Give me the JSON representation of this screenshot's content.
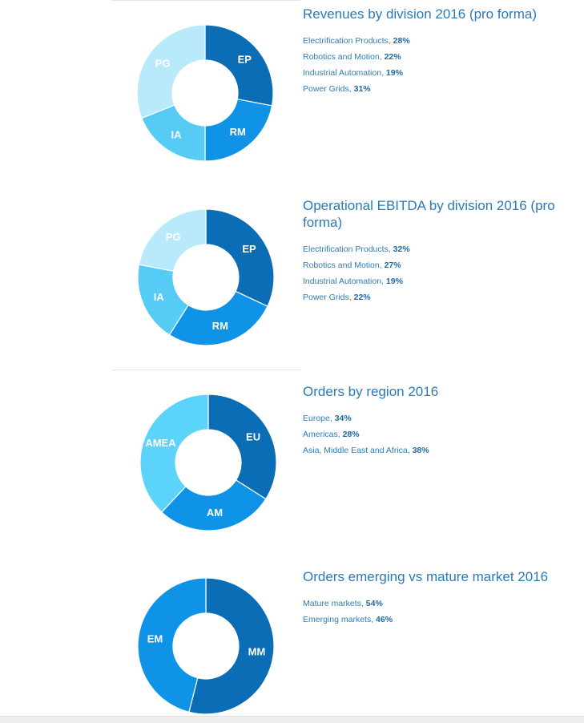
{
  "chart_data": [
    {
      "type": "pie",
      "title": "Revenues by division 2016 (pro forma)",
      "slices": [
        {
          "label": "EP",
          "legend": "Electrification Products",
          "value": 28,
          "value_text": "28%",
          "color": "#0b6db5"
        },
        {
          "label": "RM",
          "legend": "Robotics and Motion",
          "value": 22,
          "value_text": "22%",
          "color": "#0f93e6"
        },
        {
          "label": "IA",
          "legend": "Industrial Automation",
          "value": 19,
          "value_text": "19%",
          "color": "#56cbf5"
        },
        {
          "label": "PG",
          "legend": "Power Grids",
          "value": 31,
          "value_text": "31%",
          "color": "#b8eafc"
        }
      ]
    },
    {
      "type": "pie",
      "title": "Operational EBITDA by division 2016 (pro forma)",
      "slices": [
        {
          "label": "EP",
          "legend": "Electrification Products",
          "value": 32,
          "value_text": "32%",
          "color": "#0b6db5"
        },
        {
          "label": "RM",
          "legend": "Robotics and Motion",
          "value": 27,
          "value_text": "27%",
          "color": "#0f93e6"
        },
        {
          "label": "IA",
          "legend": "Industrial Automation",
          "value": 19,
          "value_text": "19%",
          "color": "#56cbf5"
        },
        {
          "label": "PG",
          "legend": "Power Grids",
          "value": 22,
          "value_text": "22%",
          "color": "#b8eafc"
        }
      ]
    },
    {
      "type": "pie",
      "title": "Orders by region 2016",
      "slices": [
        {
          "label": "EU",
          "legend": "Europe",
          "value": 34,
          "value_text": "34%",
          "color": "#0b6db5"
        },
        {
          "label": "AM",
          "legend": "Americas",
          "value": 28,
          "value_text": "28%",
          "color": "#0f93e6"
        },
        {
          "label": "AMEA",
          "legend": "Asia, Middle East and Africa",
          "value": 38,
          "value_text": "38%",
          "color": "#5cd3fb"
        }
      ]
    },
    {
      "type": "pie",
      "title": "Orders emerging vs mature market 2016",
      "slices": [
        {
          "label": "MM",
          "legend": "Mature markets",
          "value": 54,
          "value_text": "54%",
          "color": "#0b6db5"
        },
        {
          "label": "EM",
          "legend": "Emerging markets",
          "value": 46,
          "value_text": "46%",
          "color": "#0f93e6"
        }
      ]
    }
  ]
}
